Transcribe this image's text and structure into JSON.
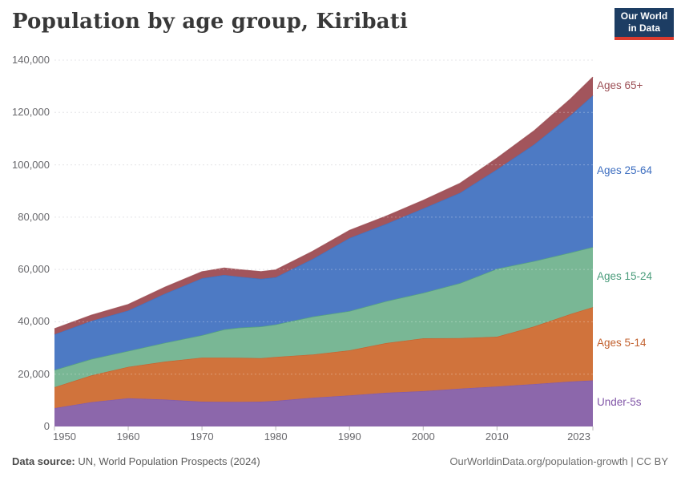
{
  "header": {
    "title": "Population by age group, Kiribati"
  },
  "logo": {
    "line1": "Our World",
    "line2": "in Data",
    "bg_color": "#1d3d63",
    "accent_color": "#dc3b2e"
  },
  "footer": {
    "source_label": "Data source:",
    "source_text": " UN, World Population Prospects (2024)",
    "link_text": "OurWorldinData.org/population-growth | CC BY"
  },
  "chart_data": {
    "type": "area",
    "stacked": true,
    "title": "Population by age group, Kiribati",
    "xlabel": "",
    "ylabel": "",
    "grid": "dashed-horizontal",
    "legend_position": "right",
    "xlim": [
      1950,
      2023
    ],
    "ylim": [
      0,
      140000
    ],
    "x": [
      1950,
      1955,
      1960,
      1965,
      1970,
      1973,
      1975,
      1978,
      1980,
      1985,
      1990,
      1995,
      2000,
      2005,
      2010,
      2015,
      2020,
      2023
    ],
    "series": [
      {
        "name": "Under-5s",
        "color": "#8c67ab",
        "label_color": "#8257a8",
        "values": [
          7000,
          9300,
          10800,
          10300,
          9500,
          9400,
          9450,
          9500,
          9800,
          11000,
          11900,
          12900,
          13500,
          14500,
          15300,
          16200,
          17200,
          17600
        ]
      },
      {
        "name": "Ages 5-14",
        "color": "#d0733c",
        "label_color": "#c2612f",
        "values": [
          8000,
          10200,
          12000,
          14500,
          16800,
          16900,
          16800,
          16600,
          16800,
          16500,
          17200,
          19000,
          20200,
          19300,
          19000,
          22000,
          25800,
          28000
        ]
      },
      {
        "name": "Ages 15-24",
        "color": "#79b795",
        "label_color": "#4a9c7b",
        "values": [
          6600,
          6300,
          6100,
          7200,
          8600,
          10800,
          11500,
          12100,
          12400,
          14500,
          15000,
          16000,
          17400,
          21000,
          26000,
          25000,
          23500,
          23000
        ]
      },
      {
        "name": "Ages 25-64",
        "color": "#4d7ac4",
        "label_color": "#3d6ec0",
        "values": [
          13600,
          14500,
          15400,
          18800,
          21700,
          20800,
          19500,
          18200,
          18000,
          22000,
          27900,
          29500,
          32200,
          34500,
          37900,
          44500,
          52500,
          57900
        ]
      },
      {
        "name": "Ages 65+",
        "color": "#a2555c",
        "label_color": "#9c4f55",
        "values": [
          2100,
          2200,
          2300,
          2400,
          2500,
          2600,
          2650,
          2750,
          2800,
          2900,
          2900,
          3000,
          3100,
          3600,
          4300,
          5200,
          6200,
          7000
        ]
      }
    ],
    "ytick_values": [
      0,
      20000,
      40000,
      60000,
      80000,
      100000,
      120000,
      140000
    ],
    "ytick_labels": [
      "0",
      "20,000",
      "40,000",
      "60,000",
      "80,000",
      "100,000",
      "120,000",
      "140,000"
    ],
    "xtick_years": [
      1950,
      1960,
      1970,
      1980,
      1990,
      2000,
      2010,
      2023
    ],
    "xtick_labels": [
      "1950",
      "1960",
      "1970",
      "1980",
      "1990",
      "2000",
      "2010",
      "2023"
    ]
  }
}
